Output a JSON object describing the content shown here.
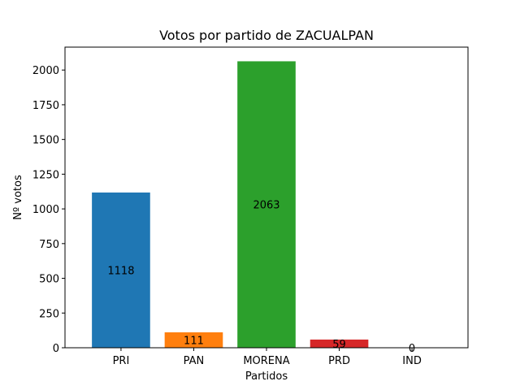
{
  "chart_data": {
    "type": "bar",
    "title": "Votos por partido de ZACUALPAN",
    "xlabel": "Partidos",
    "ylabel": "Nº votos",
    "categories": [
      "PRI",
      "PAN",
      "MORENA",
      "PRD",
      "IND"
    ],
    "values": [
      1118,
      111,
      2063,
      59,
      0
    ],
    "colors": [
      "#1f77b4",
      "#ff7f0e",
      "#2ca02c",
      "#d62728",
      "#9467bd"
    ],
    "ylim": [
      0,
      2165
    ],
    "yticks": [
      0,
      250,
      500,
      750,
      1000,
      1250,
      1500,
      1750,
      2000
    ],
    "grid": false,
    "data_labels": [
      "1118",
      "111",
      "2063",
      "59",
      "0"
    ]
  }
}
